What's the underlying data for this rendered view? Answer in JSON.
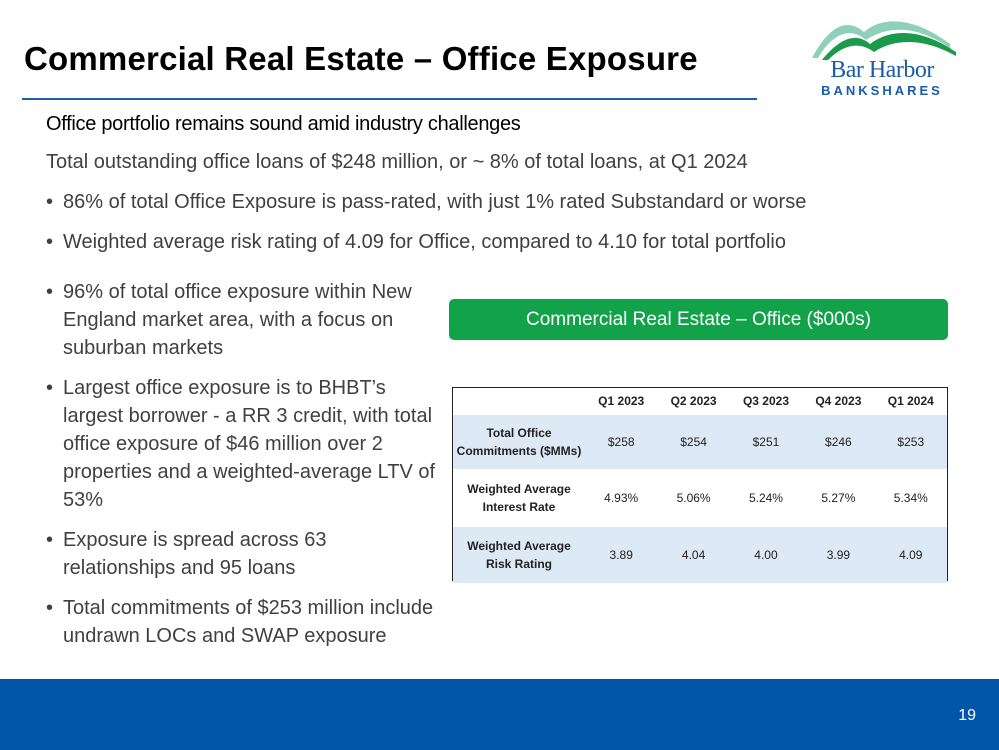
{
  "header": {
    "title": "Commercial Real Estate – Office Exposure",
    "logo": {
      "line1": "Bar Harbor",
      "line2": "BANKSHARES",
      "icon": "mountains-icon"
    }
  },
  "intro": {
    "subhead": "Office portfolio remains sound amid industry challenges",
    "lead": "Total outstanding office loans of $248 million, or ~ 8% of total loans, at Q1 2024",
    "bullets": [
      "86% of total Office Exposure is pass-rated, with just 1% rated Substandard or worse",
      "Weighted average risk rating of 4.09 for Office, compared to 4.10 for total portfolio"
    ]
  },
  "left_bullets": [
    "96% of total office exposure within New England market area, with a focus on suburban markets",
    "Largest office exposure is to BHBT’s largest borrower - a RR 3 credit, with total office exposure of $46 million over 2 properties and a weighted-average LTV of 53%",
    "Exposure is spread across 63 relationships and 95 loans",
    "Total commitments of $253 million include undrawn LOCs and SWAP exposure"
  ],
  "banner": {
    "label": "Commercial Real Estate – Office  ($000s)"
  },
  "table": {
    "columns": [
      "",
      "Q1 2023",
      "Q2 2023",
      "Q3 2023",
      "Q4 2023",
      "Q1 2024"
    ],
    "rows": [
      {
        "label": "Total Office Commitments ($MMs)",
        "values": [
          "$258",
          "$254",
          "$251",
          "$246",
          "$253"
        ]
      },
      {
        "label": "Weighted Average Interest Rate",
        "values": [
          "4.93%",
          "5.06%",
          "5.24%",
          "5.27%",
          "5.34%"
        ]
      },
      {
        "label": "Weighted Average Risk Rating",
        "values": [
          "3.89",
          "4.04",
          "4.00",
          "3.99",
          "4.09"
        ]
      }
    ]
  },
  "footer": {
    "page_number": "19"
  },
  "colors": {
    "brand_blue": "#0055a8",
    "banner_green": "#12a24a",
    "table_shade": "#dde9f5",
    "logo_green": "#1a9a4a"
  }
}
